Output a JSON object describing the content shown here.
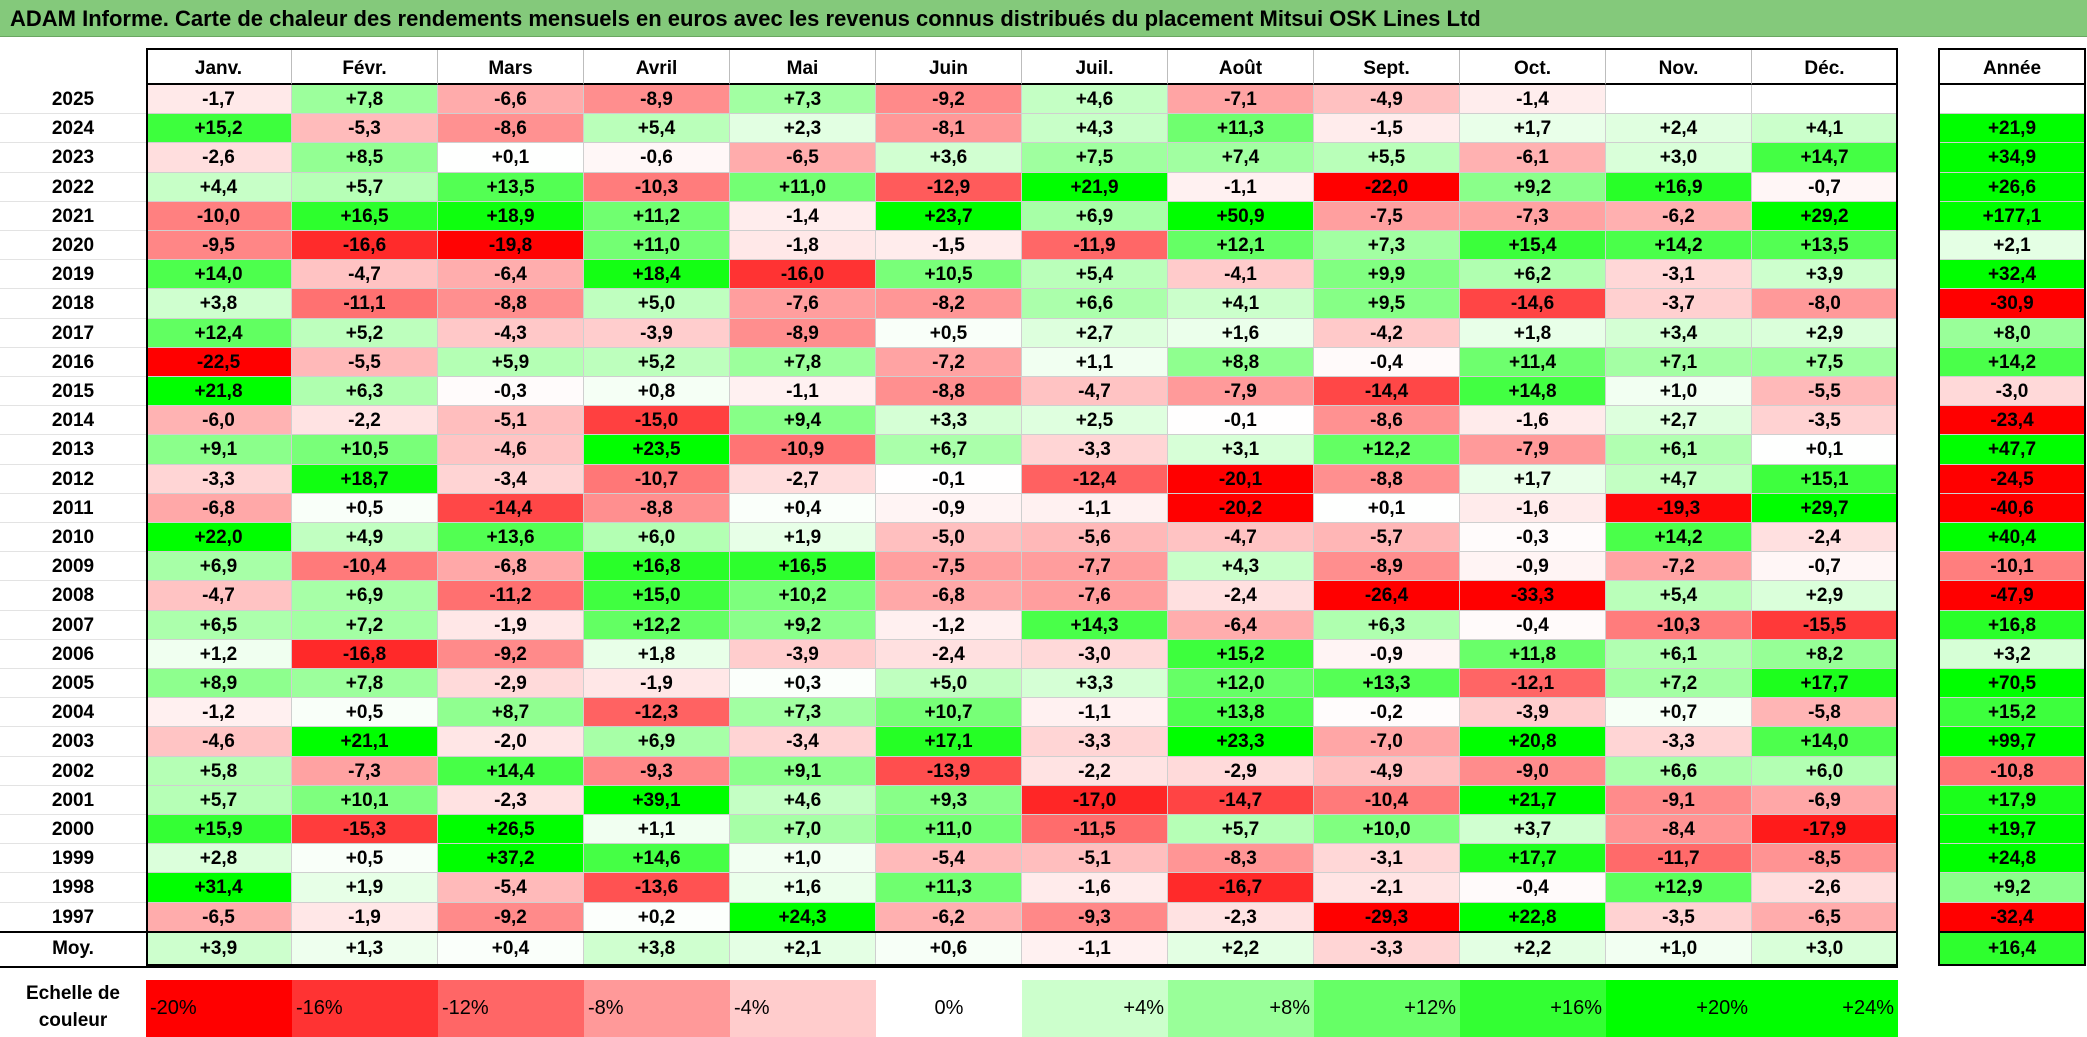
{
  "title": "ADAM Informe. Carte de chaleur des rendements mensuels en euros avec les revenus connus distribués du placement Mitsui OSK Lines Ltd",
  "chart_data": {
    "type": "heatmap",
    "title": "ADAM Informe. Carte de chaleur des rendements mensuels en euros avec les revenus connus distribués du placement Mitsui OSK Lines Ltd",
    "months": [
      "Janv.",
      "Févr.",
      "Mars",
      "Avril",
      "Mai",
      "Juin",
      "Juil.",
      "Août",
      "Sept.",
      "Oct.",
      "Nov.",
      "Déc."
    ],
    "annual_header": "Année",
    "rows": [
      {
        "year": "2025",
        "values": [
          -1.7,
          7.8,
          -6.6,
          -8.9,
          7.3,
          -9.2,
          4.6,
          -7.1,
          -4.9,
          -1.4,
          null,
          null
        ],
        "annual": null
      },
      {
        "year": "2024",
        "values": [
          15.2,
          -5.3,
          -8.6,
          5.4,
          2.3,
          -8.1,
          4.3,
          11.3,
          -1.5,
          1.7,
          2.4,
          4.1
        ],
        "annual": 21.9
      },
      {
        "year": "2023",
        "values": [
          -2.6,
          8.5,
          0.1,
          -0.6,
          -6.5,
          3.6,
          7.5,
          7.4,
          5.5,
          -6.1,
          3.0,
          14.7
        ],
        "annual": 34.9
      },
      {
        "year": "2022",
        "values": [
          4.4,
          5.7,
          13.5,
          -10.3,
          11.0,
          -12.9,
          21.9,
          -1.1,
          -22.0,
          9.2,
          16.9,
          -0.7
        ],
        "annual": 26.6
      },
      {
        "year": "2021",
        "values": [
          -10.0,
          16.5,
          18.9,
          11.2,
          -1.4,
          23.7,
          6.9,
          50.9,
          -7.5,
          -7.3,
          -6.2,
          29.2
        ],
        "annual": 177.1
      },
      {
        "year": "2020",
        "values": [
          -9.5,
          -16.6,
          -19.8,
          11.0,
          -1.8,
          -1.5,
          -11.9,
          12.1,
          7.3,
          15.4,
          14.2,
          13.5
        ],
        "annual": 2.1
      },
      {
        "year": "2019",
        "values": [
          14.0,
          -4.7,
          -6.4,
          18.4,
          -16.0,
          10.5,
          5.4,
          -4.1,
          9.9,
          6.2,
          -3.1,
          3.9
        ],
        "annual": 32.4
      },
      {
        "year": "2018",
        "values": [
          3.8,
          -11.1,
          -8.8,
          5.0,
          -7.6,
          -8.2,
          6.6,
          4.1,
          9.5,
          -14.6,
          -3.7,
          -8.0
        ],
        "annual": -30.9
      },
      {
        "year": "2017",
        "values": [
          12.4,
          5.2,
          -4.3,
          -3.9,
          -8.9,
          0.5,
          2.7,
          1.6,
          -4.2,
          1.8,
          3.4,
          2.9
        ],
        "annual": 8.0
      },
      {
        "year": "2016",
        "values": [
          -22.5,
          -5.5,
          5.9,
          5.2,
          7.8,
          -7.2,
          1.1,
          8.8,
          -0.4,
          11.4,
          7.1,
          7.5
        ],
        "annual": 14.2
      },
      {
        "year": "2015",
        "values": [
          21.8,
          6.3,
          -0.3,
          0.8,
          -1.1,
          -8.8,
          -4.7,
          -7.9,
          -14.4,
          14.8,
          1.0,
          -5.5
        ],
        "annual": -3.0
      },
      {
        "year": "2014",
        "values": [
          -6.0,
          -2.2,
          -5.1,
          -15.0,
          9.4,
          3.3,
          2.5,
          -0.1,
          -8.6,
          -1.6,
          2.7,
          -3.5
        ],
        "annual": -23.4
      },
      {
        "year": "2013",
        "values": [
          9.1,
          10.5,
          -4.6,
          23.5,
          -10.9,
          6.7,
          -3.3,
          3.1,
          12.2,
          -7.9,
          6.1,
          0.1
        ],
        "annual": 47.7
      },
      {
        "year": "2012",
        "values": [
          -3.3,
          18.7,
          -3.4,
          -10.7,
          -2.7,
          -0.1,
          -12.4,
          -20.1,
          -8.8,
          1.7,
          4.7,
          15.1
        ],
        "annual": -24.5
      },
      {
        "year": "2011",
        "values": [
          -6.8,
          0.5,
          -14.4,
          -8.8,
          0.4,
          -0.9,
          -1.1,
          -20.2,
          0.1,
          -1.6,
          -19.3,
          29.7
        ],
        "annual": -40.6
      },
      {
        "year": "2010",
        "values": [
          22.0,
          4.9,
          13.6,
          6.0,
          1.9,
          -5.0,
          -5.6,
          -4.7,
          -5.7,
          -0.3,
          14.2,
          -2.4
        ],
        "annual": 40.4
      },
      {
        "year": "2009",
        "values": [
          6.9,
          -10.4,
          -6.8,
          16.8,
          16.5,
          -7.5,
          -7.7,
          4.3,
          -8.9,
          -0.9,
          -7.2,
          -0.7
        ],
        "annual": -10.1
      },
      {
        "year": "2008",
        "values": [
          -4.7,
          6.9,
          -11.2,
          15.0,
          10.2,
          -6.8,
          -7.6,
          -2.4,
          -26.4,
          -33.3,
          5.4,
          2.9
        ],
        "annual": -47.9
      },
      {
        "year": "2007",
        "values": [
          6.5,
          7.2,
          -1.9,
          12.2,
          9.2,
          -1.2,
          14.3,
          -6.4,
          6.3,
          -0.4,
          -10.3,
          -15.5
        ],
        "annual": 16.8
      },
      {
        "year": "2006",
        "values": [
          1.2,
          -16.8,
          -9.2,
          1.8,
          -3.9,
          -2.4,
          -3.0,
          15.2,
          -0.9,
          11.8,
          6.1,
          8.2
        ],
        "annual": 3.2
      },
      {
        "year": "2005",
        "values": [
          8.9,
          7.8,
          -2.9,
          -1.9,
          0.3,
          5.0,
          3.3,
          12.0,
          13.3,
          -12.1,
          7.2,
          17.7
        ],
        "annual": 70.5
      },
      {
        "year": "2004",
        "values": [
          -1.2,
          0.5,
          8.7,
          -12.3,
          7.3,
          10.7,
          -1.1,
          13.8,
          -0.2,
          -3.9,
          0.7,
          -5.8
        ],
        "annual": 15.2
      },
      {
        "year": "2003",
        "values": [
          -4.6,
          21.1,
          -2.0,
          6.9,
          -3.4,
          17.1,
          -3.3,
          23.3,
          -7.0,
          20.8,
          -3.3,
          14.0
        ],
        "annual": 99.7
      },
      {
        "year": "2002",
        "values": [
          5.8,
          -7.3,
          14.4,
          -9.3,
          9.1,
          -13.9,
          -2.2,
          -2.9,
          -4.9,
          -9.0,
          6.6,
          6.0
        ],
        "annual": -10.8
      },
      {
        "year": "2001",
        "values": [
          5.7,
          10.1,
          -2.3,
          39.1,
          4.6,
          9.3,
          -17.0,
          -14.7,
          -10.4,
          21.7,
          -9.1,
          -6.9
        ],
        "annual": 17.9
      },
      {
        "year": "2000",
        "values": [
          15.9,
          -15.3,
          26.5,
          1.1,
          7.0,
          11.0,
          -11.5,
          5.7,
          10.0,
          3.7,
          -8.4,
          -17.9
        ],
        "annual": 19.7
      },
      {
        "year": "1999",
        "values": [
          2.8,
          0.5,
          37.2,
          14.6,
          1.0,
          -5.4,
          -5.1,
          -8.3,
          -3.1,
          17.7,
          -11.7,
          -8.5
        ],
        "annual": 24.8
      },
      {
        "year": "1998",
        "values": [
          31.4,
          1.9,
          -5.4,
          -13.6,
          1.6,
          11.3,
          -1.6,
          -16.7,
          -2.1,
          -0.4,
          12.9,
          -2.6
        ],
        "annual": 9.2
      },
      {
        "year": "1997",
        "values": [
          -6.5,
          -1.9,
          -9.2,
          0.2,
          24.3,
          -6.2,
          -9.3,
          -2.3,
          -29.3,
          22.8,
          -3.5,
          -6.5
        ],
        "annual": -32.4
      }
    ],
    "average": {
      "label": "Moy.",
      "values": [
        3.9,
        1.3,
        0.4,
        3.8,
        2.1,
        0.6,
        -1.1,
        2.2,
        -3.3,
        2.2,
        1.0,
        3.0
      ],
      "annual": 16.4
    },
    "scale": {
      "label": "Echelle de\ncouleur",
      "steps": [
        {
          "label": "-20%",
          "value": -20
        },
        {
          "label": "-16%",
          "value": -16
        },
        {
          "label": "-12%",
          "value": -12
        },
        {
          "label": "-8%",
          "value": -8
        },
        {
          "label": "-4%",
          "value": -4
        },
        {
          "label": "0%",
          "value": 0
        },
        {
          "label": "+4%",
          "value": 4
        },
        {
          "label": "+8%",
          "value": 8
        },
        {
          "label": "+12%",
          "value": 12
        },
        {
          "label": "+16%",
          "value": 16
        },
        {
          "label": "+20%",
          "value": 20
        },
        {
          "label": "+24%",
          "value": 24
        }
      ]
    },
    "colors": {
      "negative_max": "#ff0000",
      "zero": "#ffffff",
      "positive_max": "#00ff00",
      "title_bg": "#84c97b"
    }
  }
}
